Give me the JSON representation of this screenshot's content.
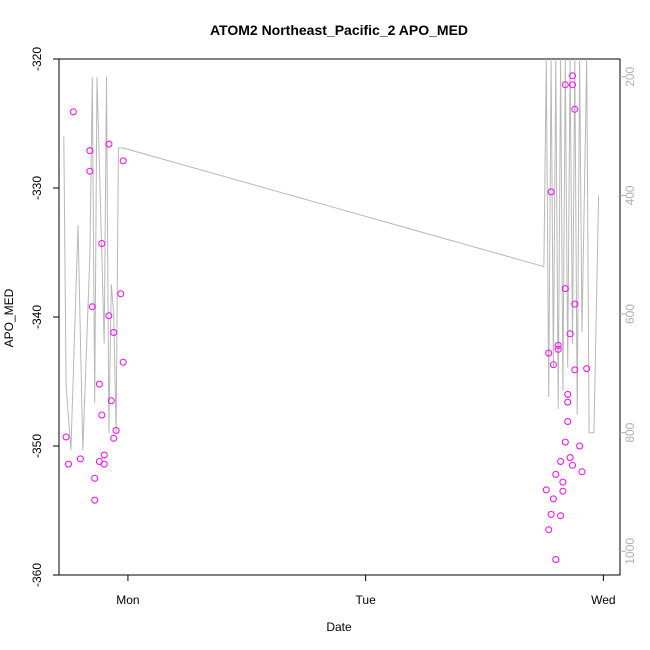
{
  "chart_data": {
    "type": "scatter",
    "title": "ATOM2 Northeast_Pacific_2 APO_MED",
    "xlabel": "Date",
    "ylabel": "APO_MED",
    "x_ticks": [
      "Mon",
      "Tue",
      "Wed"
    ],
    "x_range_days": [
      -0.29,
      2.07
    ],
    "ylim": [
      -360,
      -320
    ],
    "y_ticks": [
      -360,
      -350,
      -340,
      -330,
      -320
    ],
    "y2lim": [
      1040,
      170
    ],
    "y2_ticks": [
      200,
      400,
      600,
      800,
      1000
    ],
    "point_color": "#ff00ff",
    "line_color": "#b8b8b8",
    "series": [
      {
        "type": "points",
        "x": [
          -0.26,
          -0.25,
          -0.23,
          -0.2,
          -0.16,
          -0.16,
          -0.15,
          -0.14,
          -0.14,
          -0.12,
          -0.12,
          -0.11,
          -0.11,
          -0.1,
          -0.1,
          -0.08,
          -0.08,
          -0.07,
          -0.06,
          -0.06,
          -0.05,
          -0.03,
          -0.02,
          -0.02,
          1.76,
          1.77,
          1.77,
          1.78,
          1.78,
          1.79,
          1.79,
          1.8,
          1.8,
          1.81,
          1.81,
          1.82,
          1.82,
          1.83,
          1.83,
          1.84,
          1.84,
          1.84,
          1.85,
          1.85,
          1.85,
          1.86,
          1.86,
          1.87,
          1.87,
          1.87,
          1.88,
          1.88,
          1.88,
          1.9,
          1.91,
          1.93
        ],
        "y": [
          -349.3,
          -351.4,
          -324.1,
          -351.0,
          -328.7,
          -327.1,
          -339.2,
          -354.2,
          -352.5,
          -345.2,
          -351.2,
          -334.3,
          -347.6,
          -351.4,
          -350.7,
          -339.9,
          -326.6,
          -346.5,
          -349.4,
          -341.2,
          -348.8,
          -338.2,
          -327.9,
          -343.5,
          -353.4,
          -356.5,
          -342.8,
          -355.3,
          -330.3,
          -343.7,
          -354.1,
          -352.2,
          -358.8,
          -342.5,
          -342.2,
          -351.2,
          -355.4,
          -352.8,
          -353.5,
          -349.7,
          -337.8,
          -322.0,
          -346.6,
          -346.0,
          -348.1,
          -341.3,
          -350.9,
          -351.5,
          -322.0,
          -321.3,
          -323.9,
          -344.1,
          -339.0,
          -350.0,
          -352.0,
          -344.0
        ]
      },
      {
        "type": "line",
        "x": [
          -0.27,
          -0.26,
          -0.24,
          -0.21,
          -0.19,
          -0.16,
          -0.15,
          -0.14,
          -0.13,
          -0.11,
          -0.1,
          -0.09,
          -0.08,
          -0.07,
          -0.06,
          -0.05,
          -0.04,
          -0.02,
          1.75,
          1.76,
          1.77,
          1.78,
          1.79,
          1.8,
          1.81,
          1.82,
          1.83,
          1.84,
          1.85,
          1.86,
          1.87,
          1.88,
          1.89,
          1.9,
          1.91,
          1.93,
          1.94,
          1.96,
          1.98
        ],
        "y": [
          300,
          720,
          830,
          450,
          830,
          500,
          200,
          750,
          200,
          500,
          650,
          200,
          800,
          550,
          600,
          800,
          320,
          320,
          520,
          170,
          740,
          170,
          690,
          170,
          760,
          170,
          730,
          170,
          690,
          170,
          650,
          170,
          770,
          170,
          630,
          170,
          800,
          800,
          400
        ]
      }
    ]
  }
}
